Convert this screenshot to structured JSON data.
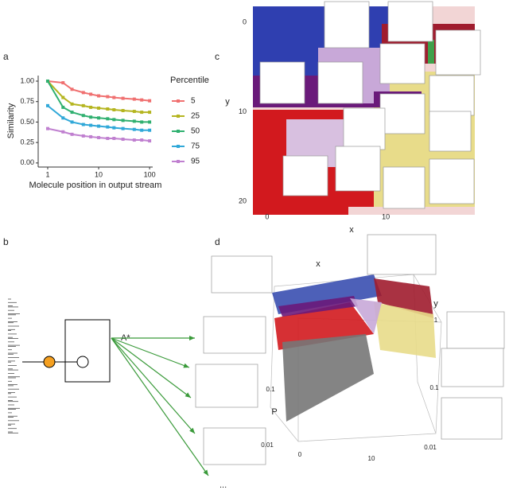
{
  "panel_labels": [
    "a",
    "b",
    "c",
    "d"
  ],
  "chart_data": [
    {
      "type": "line",
      "xlabel": "Molecule position in output stream",
      "ylabel": "Similarity",
      "legend_title": "Percentile",
      "log_x": true,
      "x": [
        1,
        2,
        3,
        5,
        7,
        10,
        15,
        20,
        30,
        50,
        70,
        100
      ],
      "series": [
        {
          "name": "5",
          "color": "#f07070",
          "values": [
            1.0,
            0.98,
            0.9,
            0.86,
            0.84,
            0.82,
            0.81,
            0.8,
            0.79,
            0.78,
            0.77,
            0.76
          ]
        },
        {
          "name": "25",
          "color": "#b5b520",
          "values": [
            1.0,
            0.8,
            0.72,
            0.7,
            0.68,
            0.67,
            0.66,
            0.65,
            0.64,
            0.63,
            0.62,
            0.62
          ]
        },
        {
          "name": "50",
          "color": "#30b070",
          "values": [
            1.0,
            0.68,
            0.62,
            0.58,
            0.56,
            0.55,
            0.54,
            0.53,
            0.52,
            0.51,
            0.5,
            0.5
          ]
        },
        {
          "name": "75",
          "color": "#30a8d8",
          "values": [
            0.7,
            0.55,
            0.5,
            0.47,
            0.46,
            0.45,
            0.44,
            0.43,
            0.42,
            0.41,
            0.4,
            0.4
          ]
        },
        {
          "name": "95",
          "color": "#c080d0",
          "values": [
            0.42,
            0.38,
            0.35,
            0.33,
            0.32,
            0.31,
            0.3,
            0.3,
            0.29,
            0.28,
            0.28,
            0.27
          ]
        }
      ],
      "xlim": [
        0.65,
        115
      ],
      "xticks": [
        1,
        10,
        100
      ],
      "ylim": [
        -0.05,
        1.068
      ],
      "yticks": [
        {
          "value": 0,
          "label": "0.00"
        },
        {
          "value": 0.25,
          "label": "0.25"
        },
        {
          "value": 0.5,
          "label": "0.50"
        },
        {
          "value": 0.75,
          "label": "0.75"
        },
        {
          "value": 1,
          "label": "1.00"
        }
      ]
    },
    {
      "type": "map",
      "xlabel": "x",
      "ylabel": "y",
      "xlim": [
        -1.2,
        17.5
      ],
      "xticks": [
        0,
        10
      ],
      "ylim": [
        21.5,
        -1.8
      ],
      "yticks": [
        0,
        10,
        20
      ]
    }
  ],
  "diagram": {
    "edge_label": "A*",
    "more": "..."
  },
  "panel_d": {
    "axis_labels": [
      "x",
      "y",
      "P"
    ],
    "tick_labels": [
      "0",
      "10",
      "0.1",
      "0.01",
      "1",
      "0.1",
      "0.01"
    ]
  }
}
